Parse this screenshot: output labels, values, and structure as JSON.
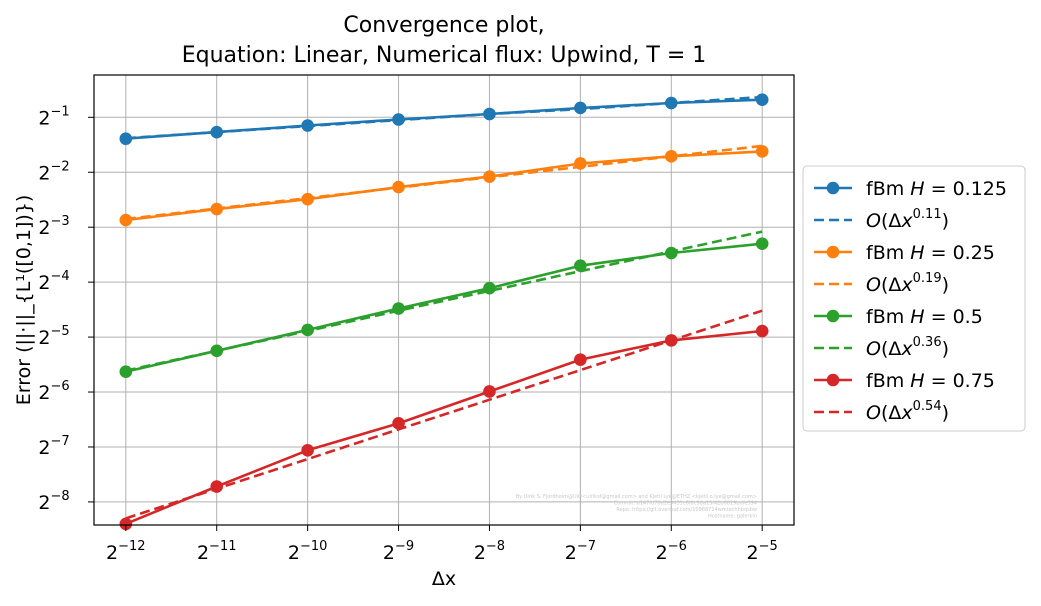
{
  "chart_data": {
    "type": "line",
    "title_line1": "Convergence plot,",
    "title_line2": "Equation: Linear, Numerical flux: Upwind, T = 1",
    "xlabel": "Δx",
    "ylabel": "Error (||·||_{L¹([0,1])})",
    "x_scale": "log2",
    "y_scale": "log2",
    "x": [
      -12,
      -11,
      -10,
      -9,
      -8,
      -7,
      -6,
      -5
    ],
    "x_tick_labels": [
      "2^-12",
      "2^-11",
      "2^-10",
      "2^-9",
      "2^-8",
      "2^-7",
      "2^-6",
      "2^-5"
    ],
    "y_ticks": [
      -8,
      -7,
      -6,
      -5,
      -4,
      -3,
      -2,
      -1
    ],
    "y_tick_labels": [
      "2^-8",
      "2^-7",
      "2^-6",
      "2^-5",
      "2^-4",
      "2^-3",
      "2^-2",
      "2^-1"
    ],
    "xlim": [
      -12.35,
      -4.65
    ],
    "ylim": [
      -8.42,
      -0.23
    ],
    "grid": true,
    "legend_position": "outside-right",
    "series": [
      {
        "name": "fBm H = 0.125",
        "color": "#1f77b4",
        "style": "solid-marker",
        "values": [
          -1.39,
          -1.27,
          -1.15,
          -1.04,
          -0.94,
          -0.83,
          -0.74,
          -0.68
        ]
      },
      {
        "name": "O(Δx^0.11)",
        "color": "#1f77b4",
        "style": "dashed",
        "values": [
          -1.38,
          -1.27,
          -1.16,
          -1.05,
          -0.94,
          -0.85,
          -0.74,
          -0.63
        ]
      },
      {
        "name": "fBm H = 0.25",
        "color": "#ff7f0e",
        "style": "solid-marker",
        "values": [
          -2.87,
          -2.67,
          -2.49,
          -2.27,
          -2.08,
          -1.84,
          -1.71,
          -1.62
        ]
      },
      {
        "name": "O(Δx^0.19)",
        "color": "#ff7f0e",
        "style": "dashed",
        "values": [
          -2.85,
          -2.66,
          -2.47,
          -2.28,
          -2.09,
          -1.9,
          -1.71,
          -1.52
        ]
      },
      {
        "name": "fBm H = 0.5",
        "color": "#2ca02c",
        "style": "solid-marker",
        "values": [
          -5.63,
          -5.25,
          -4.87,
          -4.48,
          -4.11,
          -3.7,
          -3.47,
          -3.3
        ]
      },
      {
        "name": "O(Δx^0.36)",
        "color": "#2ca02c",
        "style": "dashed",
        "values": [
          -5.61,
          -5.25,
          -4.89,
          -4.52,
          -4.16,
          -3.8,
          -3.44,
          -3.08
        ]
      },
      {
        "name": "fBm H = 0.75",
        "color": "#d62728",
        "style": "solid-marker",
        "values": [
          -8.4,
          -7.72,
          -7.06,
          -6.57,
          -5.99,
          -5.41,
          -5.06,
          -4.89
        ]
      },
      {
        "name": "O(Δx^0.54)",
        "color": "#d62728",
        "style": "dashed",
        "values": [
          -8.3,
          -7.76,
          -7.22,
          -6.68,
          -6.14,
          -5.6,
          -5.06,
          -4.52
        ]
      }
    ],
    "watermark_lines": [
      "By Ulrik S. Fjordholm@UiO<ulriksf@gmail.com> and Kjetil Lye@ETHZ <kjetil.o.lye@gmail.com>",
      "Commit: d147fd70d2e9431c6f6c90a13f42b6819bdfe394",
      "Repo: https://git.overleaf.com/10988714wmtechhbqsbw",
      "Hostname: galerkin"
    ]
  }
}
